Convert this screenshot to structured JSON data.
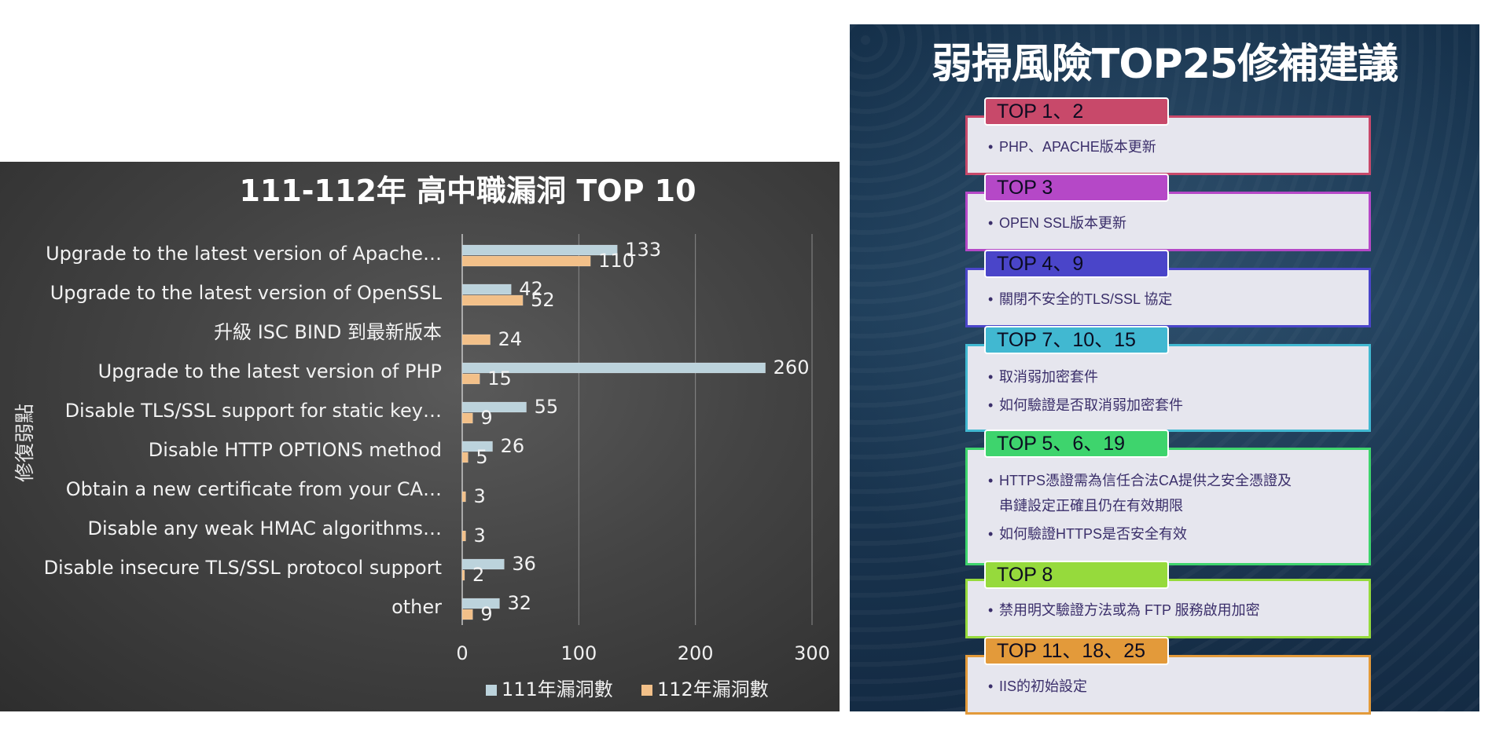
{
  "chart_data": {
    "type": "bar",
    "title": "111-112年 高中職漏洞 TOP 10",
    "ylabel": "修復弱點",
    "xlim": [
      0,
      300
    ],
    "xticks": [
      0,
      100,
      200,
      300
    ],
    "categories": [
      "Upgrade to the latest version of Apache…",
      "Upgrade to the latest version of OpenSSL",
      "升級 ISC BIND 到最新版本",
      "Upgrade to the latest version of PHP",
      "Disable TLS/SSL support for static key…",
      "Disable HTTP OPTIONS method",
      "Obtain a new certificate from your CA…",
      "Disable any weak HMAC algorithms…",
      "Disable insecure TLS/SSL protocol support",
      "other"
    ],
    "series": [
      {
        "name": "111年漏洞數",
        "color": "#bcd3dc",
        "values": [
          133,
          42,
          null,
          260,
          55,
          26,
          null,
          null,
          36,
          32
        ]
      },
      {
        "name": "112年漏洞數",
        "color": "#f2c089",
        "values": [
          110,
          52,
          24,
          15,
          9,
          5,
          3,
          3,
          2,
          9
        ]
      }
    ],
    "legend_position": "bottom",
    "grid": true
  },
  "slide": {
    "title": "弱掃風險TOP25修補建議",
    "cards": [
      {
        "tab": "TOP 1、2",
        "color": "#c8496a",
        "bullets": [
          "PHP、APACHE版本更新"
        ]
      },
      {
        "tab": "TOP 3",
        "color": "#b548c7",
        "bullets": [
          "OPEN SSL版本更新"
        ]
      },
      {
        "tab": "TOP 4、9",
        "color": "#4a45c9",
        "bullets": [
          "關閉不安全的TLS/SSL 協定"
        ]
      },
      {
        "tab": "TOP 7、10、15",
        "color": "#41b8d1",
        "bullets": [
          "取消弱加密套件",
          "如何驗證是否取消弱加密套件"
        ]
      },
      {
        "tab": "TOP 5、6、19",
        "color": "#3ed46d",
        "bullets": [
          "HTTPS憑證需為信任合法CA提供之安全憑證及",
          "串鏈設定正確且仍在有效期限",
          "如何驗證HTTPS是否安全有效"
        ]
      },
      {
        "tab": "TOP 8",
        "color": "#96da3c",
        "bullets": [
          "禁用明文驗證方法或為 FTP 服務啟用加密"
        ]
      },
      {
        "tab": "TOP 11、18、25",
        "color": "#e39a3a",
        "bullets": [
          "IIS的初始設定"
        ]
      }
    ]
  }
}
